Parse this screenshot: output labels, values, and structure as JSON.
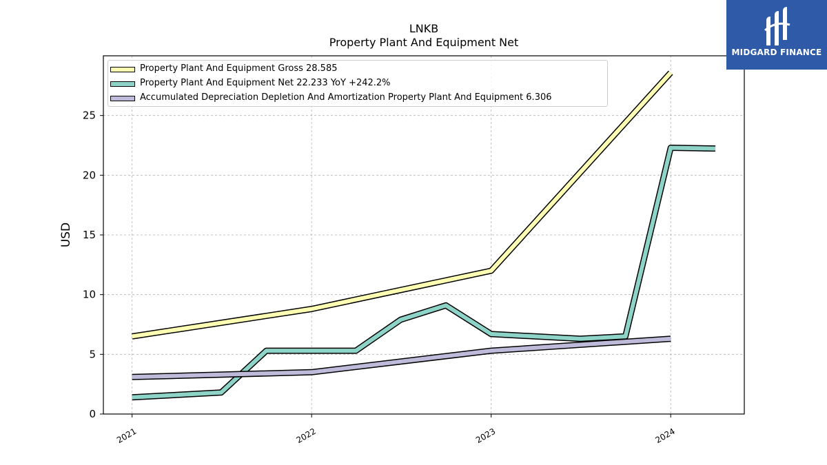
{
  "chart_data": {
    "type": "line",
    "title": "LNKB",
    "subtitle": "Property Plant And Equipment Net",
    "ylabel": "USD",
    "xlabel": "",
    "ylim": [
      0,
      30
    ],
    "xlim": [
      2020.84,
      2024.41
    ],
    "yticks": [
      0,
      5,
      10,
      15,
      20,
      25
    ],
    "xticks": [
      "2021",
      "2022",
      "2023",
      "2024"
    ],
    "grid": true,
    "legend_position": "top-left",
    "series": [
      {
        "name": "Property Plant And Equipment Gross",
        "legend_label": "Property Plant And Equipment Gross  28.585",
        "color": "#ffffb3",
        "x": [
          "2021-01-01",
          "2022-01-01",
          "2023-01-01",
          "2024-01-01"
        ],
        "y": [
          6.5,
          8.8,
          12.0,
          28.585
        ]
      },
      {
        "name": "Property Plant And Equipment Net",
        "legend_label": "Property Plant And Equipment Net  22.233 YoY +242.2%",
        "color": "#8dd3c7",
        "x": [
          "2021-01-01",
          "2021-07-01",
          "2021-10-01",
          "2022-01-01",
          "2022-04-01",
          "2022-07-01",
          "2022-10-01",
          "2023-01-01",
          "2023-07-01",
          "2023-10-01",
          "2024-01-01",
          "2024-04-01"
        ],
        "y": [
          1.4,
          1.8,
          5.3,
          5.3,
          5.3,
          7.9,
          9.1,
          6.7,
          6.3,
          6.5,
          22.3,
          22.233
        ]
      },
      {
        "name": "Accumulated Depreciation Depletion And Amortization Property Plant And Equipment",
        "legend_label": "Accumulated Depreciation Depletion And Amortization Property Plant And Equipment  6.306",
        "color": "#bebada",
        "x": [
          "2021-01-01",
          "2022-01-01",
          "2023-01-01",
          "2024-01-01"
        ],
        "y": [
          3.1,
          3.5,
          5.3,
          6.306
        ]
      }
    ]
  },
  "logo": {
    "text": "MIDGARD FINANCE",
    "color": "#2f5aa8"
  }
}
